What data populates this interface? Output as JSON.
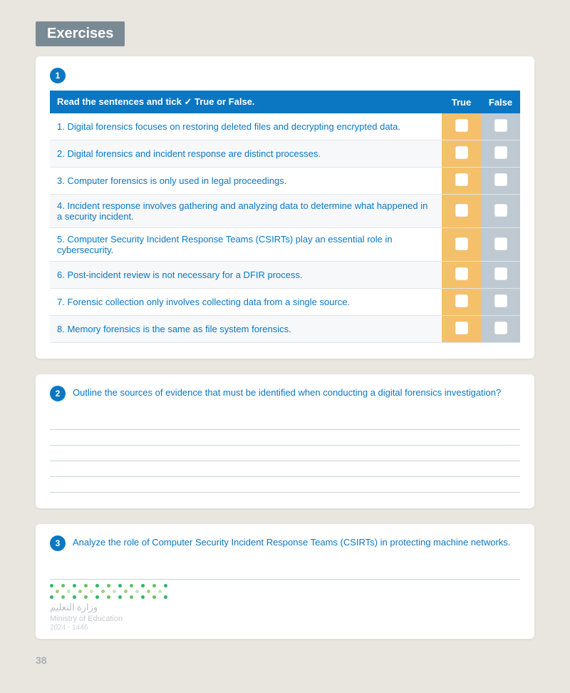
{
  "header": {
    "title": "Exercises"
  },
  "colors": {
    "primary": "#0b77c2",
    "true_col_bg": "#f4c06a",
    "false_col_bg": "#bfc9d1",
    "box_bg": "#ffffff"
  },
  "q1": {
    "number": "1",
    "header": "Read the sentences and tick",
    "header_tail": "True or False.",
    "tick_glyph": "✓",
    "true_label": "True",
    "false_label": "False",
    "rows": [
      "1. Digital forensics focuses on restoring deleted files and decrypting encrypted data.",
      "2. Digital forensics and incident response are distinct processes.",
      "3. Computer forensics is only used in legal proceedings.",
      "4. Incident response involves gathering and analyzing data to determine what happened in a security incident.",
      "5. Computer Security Incident Response Teams (CSIRTs) play an essential role in cybersecurity.",
      "6. Post-incident review is not necessary for a DFIR process.",
      "7. Forensic collection only involves collecting data from a single source.",
      "8. Memory forensics is the same as file system forensics."
    ]
  },
  "q2": {
    "number": "2",
    "prompt": "Outline the sources of evidence that must be identified when conducting a digital forensics investigation?",
    "blank_lines": 5
  },
  "q3": {
    "number": "3",
    "prompt": "Analyze the role of Computer Security Incident Response Teams (CSIRTs) in protecting machine networks.",
    "blank_lines": 1
  },
  "footer": {
    "arabic": "وزارة التعليم",
    "line2": "Ministry of Education",
    "line3": "2024 - 1446",
    "page": "38",
    "dot_colors_pool": [
      "#2fb66b",
      "#9fcf7a",
      "#6abf5f",
      "#c9e3b8"
    ]
  }
}
